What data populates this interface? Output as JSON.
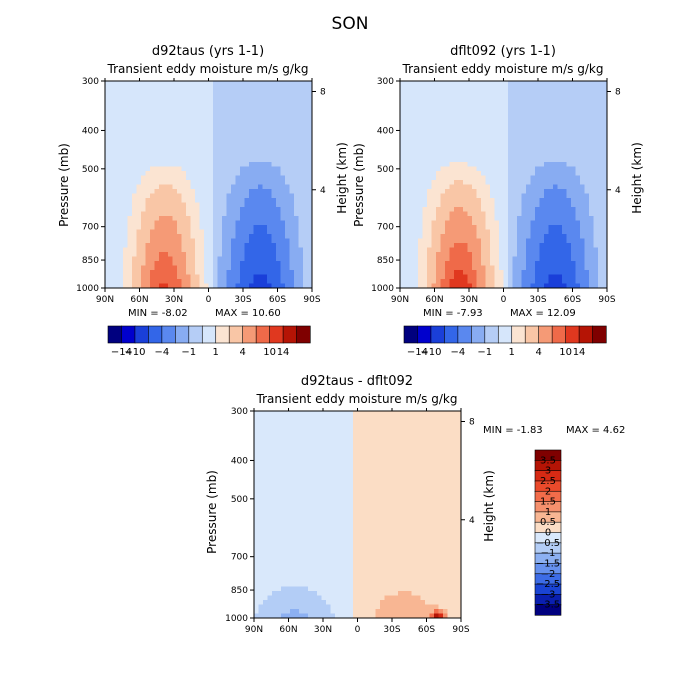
{
  "figure": {
    "title": "SON"
  },
  "chart_data": [
    {
      "type": "heatmap",
      "title": "d92taus (yrs 1-1)",
      "subtitle": "Transient eddy moisture m/s g/kg",
      "xlabel": "",
      "ylabel": "Pressure (mb)",
      "y2label": "Height (km)",
      "x_ticks": [
        "90N",
        "60N",
        "30N",
        "0",
        "30S",
        "60S",
        "90S"
      ],
      "y_ticks": [
        "300",
        "400",
        "500",
        "700",
        "850",
        "1000"
      ],
      "y2_ticks": [
        "8",
        "4"
      ],
      "xlim": [
        90,
        -90
      ],
      "ylim": [
        1000,
        300
      ],
      "log_pressure_axis": true,
      "min_text": "MIN = -8.02",
      "max_text": "MAX = 10.60",
      "stats": {
        "min": -8.02,
        "max": 10.6
      },
      "colorbar": {
        "orientation": "horizontal",
        "labels": [
          "-14",
          "-10",
          "-4",
          "-1",
          "1",
          "4",
          "10",
          "14"
        ],
        "levels": [
          -14,
          -10,
          -7,
          -4,
          -2,
          -1,
          0,
          1,
          2,
          4,
          7,
          10,
          14
        ],
        "colors": [
          "#00007f",
          "#0000cd",
          "#1a3fd9",
          "#3366e8",
          "#5a88ef",
          "#88acf2",
          "#b5cdf6",
          "#d6e6fb",
          "#fbe4d2",
          "#f9c6a6",
          "#f59a76",
          "#ef6a49",
          "#e0381f",
          "#b51405",
          "#7f0000"
        ]
      },
      "features": [
        {
          "lat": -45,
          "logp_level": 880,
          "lat_halfwidth": 30,
          "top_level": 430,
          "value": -7.5
        },
        {
          "lat": 38,
          "logp_level": 880,
          "lat_halfwidth": 28,
          "top_level": 450,
          "value": 10.0
        }
      ]
    },
    {
      "type": "heatmap",
      "title": "dflt092 (yrs 1-1)",
      "subtitle": "Transient eddy moisture m/s g/kg",
      "xlabel": "",
      "ylabel": "Pressure (mb)",
      "y2label": "Height (km)",
      "x_ticks": [
        "90N",
        "60N",
        "30N",
        "0",
        "30S",
        "60S",
        "90S"
      ],
      "y_ticks": [
        "300",
        "400",
        "500",
        "700",
        "850",
        "1000"
      ],
      "y2_ticks": [
        "8",
        "4"
      ],
      "xlim": [
        90,
        -90
      ],
      "ylim": [
        1000,
        300
      ],
      "log_pressure_axis": true,
      "min_text": "MIN = -7.93",
      "max_text": "MAX = 12.09",
      "stats": {
        "min": -7.93,
        "max": 12.09
      },
      "colorbar": {
        "orientation": "horizontal",
        "labels": [
          "-14",
          "-10",
          "-4",
          "-1",
          "1",
          "4",
          "10",
          "14"
        ],
        "levels": [
          -14,
          -10,
          -7,
          -4,
          -2,
          -1,
          0,
          1,
          2,
          4,
          7,
          10,
          14
        ],
        "colors": [
          "#00007f",
          "#0000cd",
          "#1a3fd9",
          "#3366e8",
          "#5a88ef",
          "#88acf2",
          "#b5cdf6",
          "#d6e6fb",
          "#fbe4d2",
          "#f9c6a6",
          "#f59a76",
          "#ef6a49",
          "#e0381f",
          "#b51405",
          "#7f0000"
        ]
      },
      "features": [
        {
          "lat": -45,
          "logp_level": 880,
          "lat_halfwidth": 30,
          "top_level": 430,
          "value": -7.5
        },
        {
          "lat": 38,
          "logp_level": 880,
          "lat_halfwidth": 28,
          "top_level": 450,
          "value": 11.5
        }
      ]
    },
    {
      "type": "heatmap",
      "title": "d92taus - dflt092",
      "subtitle": "Transient eddy moisture m/s g/kg",
      "xlabel": "",
      "ylabel": "Pressure (mb)",
      "y2label": "Height (km)",
      "x_ticks": [
        "90N",
        "60N",
        "30N",
        "0",
        "30S",
        "60S",
        "90S"
      ],
      "y_ticks": [
        "300",
        "400",
        "500",
        "700",
        "850",
        "1000"
      ],
      "y2_ticks": [
        "8",
        "4"
      ],
      "xlim": [
        90,
        -90
      ],
      "ylim": [
        1000,
        300
      ],
      "log_pressure_axis": true,
      "min_text": "MIN = -1.83",
      "max_text": "MAX = 4.62",
      "stats": {
        "min": -1.83,
        "max": 4.62
      },
      "colorbar": {
        "orientation": "vertical",
        "labels": [
          "3.5",
          "3",
          "2.5",
          "2",
          "1.5",
          "1",
          "0.5",
          "0",
          "-0.5",
          "-1",
          "-1.5",
          "-2",
          "-2.5",
          "-3",
          "-3.5"
        ],
        "levels": [
          3.5,
          3,
          2.5,
          2,
          1.5,
          1,
          0.5,
          0,
          -0.5,
          -1,
          -1.5,
          -2,
          -2.5,
          -3,
          -3.5
        ],
        "colors": [
          "#7f0000",
          "#b51405",
          "#d62a14",
          "#eb4a2b",
          "#f26c4a",
          "#f5906d",
          "#f8b693",
          "#fbddc5",
          "#d9e8fb",
          "#b3cdf6",
          "#8cb0f2",
          "#6691ee",
          "#3d6ce6",
          "#1a44d4",
          "#0a1fb0",
          "#00007f"
        ]
      }
    }
  ]
}
